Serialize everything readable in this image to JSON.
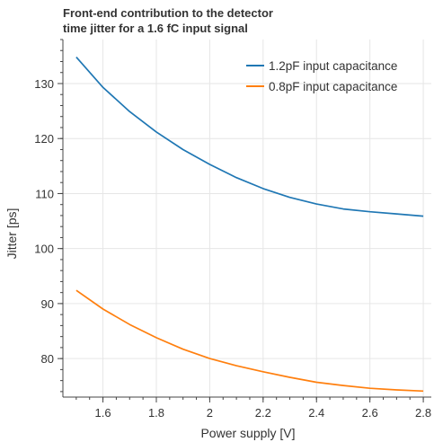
{
  "chart_data": {
    "type": "line",
    "title_lines": [
      "Front-end contribution to the detector",
      "time jitter for a 1.6 fC input signal"
    ],
    "xlabel": "Power supply [V]",
    "ylabel": "Jitter [ps]",
    "xlim": [
      1.45,
      2.83
    ],
    "ylim": [
      73,
      138
    ],
    "xticks": [
      1.6,
      1.8,
      2.0,
      2.2,
      2.4,
      2.6,
      2.8
    ],
    "xtick_labels": [
      "1.6",
      "1.8",
      "2",
      "2.2",
      "2.4",
      "2.6",
      "2.8"
    ],
    "yticks": [
      80,
      90,
      100,
      110,
      120,
      130
    ],
    "ytick_labels": [
      "80",
      "90",
      "100",
      "110",
      "120",
      "130"
    ],
    "grid": true,
    "legend_position": "top-right",
    "x": [
      1.5,
      1.6,
      1.7,
      1.8,
      1.9,
      2.0,
      2.1,
      2.2,
      2.3,
      2.4,
      2.5,
      2.6,
      2.7,
      2.8
    ],
    "series": [
      {
        "name": "1.2pF input capacitance",
        "color": "#1f77b4",
        "values": [
          134.8,
          129.3,
          124.9,
          121.2,
          118.0,
          115.3,
          112.9,
          110.9,
          109.3,
          108.1,
          107.2,
          106.7,
          106.3,
          105.9
        ]
      },
      {
        "name": "0.8pF input capacitance",
        "color": "#ff7f0e",
        "values": [
          92.4,
          89.0,
          86.2,
          83.8,
          81.7,
          80.0,
          78.7,
          77.6,
          76.6,
          75.7,
          75.1,
          74.6,
          74.3,
          74.1
        ]
      }
    ]
  }
}
